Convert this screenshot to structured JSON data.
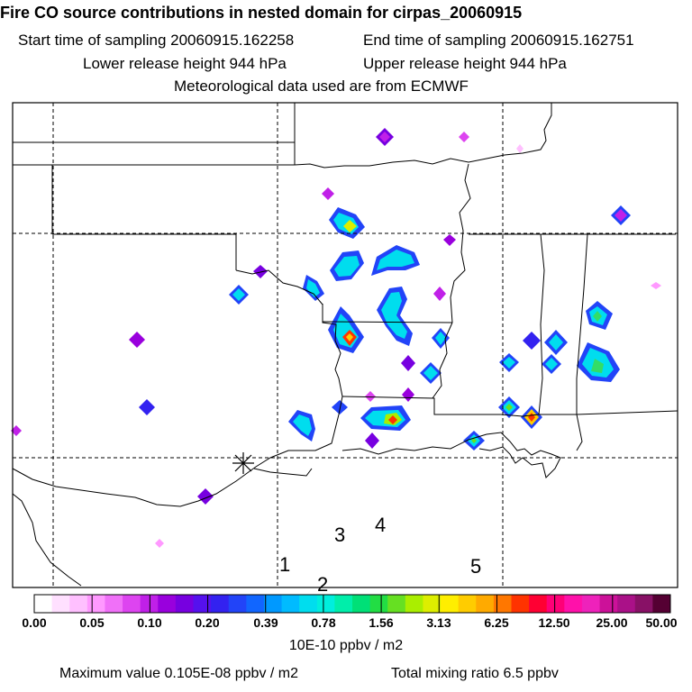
{
  "header": {
    "title": "Fire CO source contributions in nested domain for cirpas_20060915",
    "start_sampling": "Start time of sampling 20060915.162258",
    "end_sampling": "End time of sampling 20060915.162751",
    "lower_release": "Lower release height  944 hPa",
    "upper_release": "Upper release height  944 hPa",
    "met_data": "Meteorological data used are from ECMWF"
  },
  "map": {
    "track_labels": [
      "1",
      "2",
      "3",
      "4",
      "5"
    ],
    "release_marker_icon": "asterisk-icon",
    "colors": {
      "low": "#ff99ff",
      "purple": "#9900cc",
      "blue": "#2244ee",
      "cyan": "#00ddee",
      "green": "#33dd66",
      "yellow": "#ffdd00",
      "red": "#ff2222"
    }
  },
  "colorbar": {
    "tick_labels": [
      "0.00",
      "0.05",
      "0.10",
      "0.20",
      "0.39",
      "0.78",
      "1.56",
      "3.13",
      "6.25",
      "12.50",
      "25.00",
      "50.00"
    ],
    "colors": [
      "#ffffff",
      "#ffe0ff",
      "#ffc0ff",
      "#ff99ff",
      "#f070f8",
      "#dd44f0",
      "#c020e8",
      "#9900dd",
      "#7700e0",
      "#5511ee",
      "#3322f0",
      "#2244f8",
      "#1166ff",
      "#0099ff",
      "#00bbff",
      "#00ddee",
      "#00eedd",
      "#00eeaa",
      "#00e077",
      "#22dd44",
      "#66e022",
      "#aaee00",
      "#ddee00",
      "#ffee00",
      "#ffcc00",
      "#ffaa00",
      "#ff7700",
      "#ff3300",
      "#ff0033",
      "#ff0077",
      "#ff11aa",
      "#ee22bb",
      "#cc1199",
      "#aa1188",
      "#881166",
      "#550033"
    ],
    "units": "10E-10 ppbv / m2"
  },
  "footer": {
    "max_value": "Maximum value  0.105E-08 ppbv / m2",
    "total_mixing": "Total mixing ratio       6.5 ppbv"
  }
}
